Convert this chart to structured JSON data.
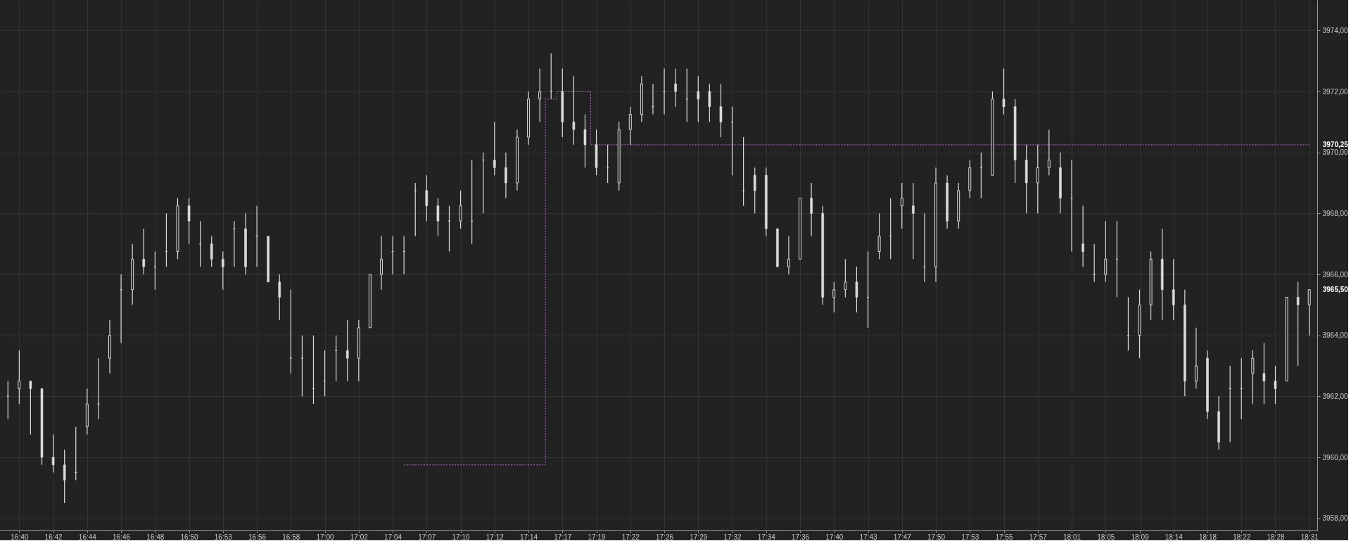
{
  "chart_data": {
    "type": "candlestick",
    "categories": [
      null,
      "16:40",
      null,
      null,
      "16:42",
      null,
      null,
      "16:44",
      null,
      null,
      "16:46",
      null,
      null,
      "16:48",
      null,
      null,
      "16:50",
      null,
      null,
      "16:53",
      null,
      null,
      "16:56",
      null,
      null,
      "16:58",
      null,
      null,
      "17:00",
      null,
      null,
      "17:02",
      null,
      null,
      "17:04",
      null,
      null,
      "17:07",
      null,
      null,
      "17:10",
      null,
      null,
      "17:12",
      null,
      null,
      "17:14",
      null,
      null,
      "17:17",
      null,
      null,
      "17:19",
      null,
      null,
      "17:22",
      null,
      null,
      "17:26",
      null,
      null,
      "17:29",
      null,
      null,
      "17:32",
      null,
      null,
      "17:34",
      null,
      null,
      "17:36",
      null,
      null,
      "17:40",
      null,
      null,
      "17:43",
      null,
      null,
      "17:47",
      null,
      null,
      "17:50",
      null,
      null,
      "17:53",
      null,
      null,
      "17:55",
      null,
      null,
      "17:57",
      null,
      null,
      "18:01",
      null,
      null,
      "18:05",
      null,
      null,
      "18:09",
      null,
      null,
      "18:14",
      null,
      null,
      "18:18",
      null,
      null,
      "18:22",
      null,
      null,
      "18:28",
      null,
      null,
      "18:31"
    ],
    "ohlc": [
      [
        3962,
        3962.5,
        3961.25,
        3962
      ],
      [
        3962.25,
        3963.5,
        3961.75,
        3962.5
      ],
      [
        3962.5,
        3962.5,
        3960.75,
        3962.25
      ],
      [
        3962.25,
        3962.25,
        3959.75,
        3960
      ],
      [
        3960,
        3960.75,
        3959.5,
        3959.75
      ],
      [
        3959.75,
        3960.25,
        3958.5,
        3959.25
      ],
      [
        3959.5,
        3961,
        3959.25,
        3959.5
      ],
      [
        3961,
        3962.25,
        3960.75,
        3961.75
      ],
      [
        3961.75,
        3963.25,
        3961.25,
        3961.75
      ],
      [
        3963.25,
        3964.5,
        3962.75,
        3964
      ],
      [
        3965.5,
        3966,
        3963.75,
        3965.5
      ],
      [
        3965.5,
        3967,
        3965,
        3966.5
      ],
      [
        3966.5,
        3967.5,
        3966,
        3966.25
      ],
      [
        3966.25,
        3966.75,
        3965.5,
        3966.25
      ],
      [
        3966.75,
        3968,
        3966.25,
        3966.75
      ],
      [
        3966.75,
        3968.5,
        3966.5,
        3968.25
      ],
      [
        3968.25,
        3968.5,
        3967,
        3967.75
      ],
      [
        3967,
        3967.75,
        3966.25,
        3967
      ],
      [
        3967,
        3967.25,
        3966.25,
        3966.5
      ],
      [
        3966.5,
        3966.75,
        3965.5,
        3966.25
      ],
      [
        3967.5,
        3967.75,
        3966.25,
        3967.5
      ],
      [
        3967.5,
        3968,
        3966,
        3966.25
      ],
      [
        3967.25,
        3968.25,
        3966.25,
        3967.25
      ],
      [
        3967.25,
        3967.25,
        3965.75,
        3965.75
      ],
      [
        3965.75,
        3966,
        3964.5,
        3965.25
      ],
      [
        3963.25,
        3965.5,
        3962.75,
        3963.25
      ],
      [
        3963.25,
        3964,
        3962,
        3963.25
      ],
      [
        3962.25,
        3964,
        3961.75,
        3962.25
      ],
      [
        3962.5,
        3963.5,
        3962,
        3962.5
      ],
      [
        3963.5,
        3964,
        3962.5,
        3963.5
      ],
      [
        3963.5,
        3964.5,
        3962.5,
        3963.25
      ],
      [
        3963.25,
        3964.5,
        3962.5,
        3964.25
      ],
      [
        3964.25,
        3966,
        3964.25,
        3966
      ],
      [
        3966,
        3967.25,
        3965.5,
        3966.5
      ],
      [
        3966.75,
        3967.25,
        3966,
        3966.75
      ],
      [
        3966.75,
        3967.25,
        3966,
        3966.75
      ],
      [
        3968.75,
        3969,
        3967.25,
        3968.75
      ],
      [
        3968.75,
        3969.25,
        3967.75,
        3968.25
      ],
      [
        3968.25,
        3968.5,
        3967.25,
        3967.75
      ],
      [
        3967.75,
        3968.25,
        3966.75,
        3967.75
      ],
      [
        3967.75,
        3968.75,
        3967.5,
        3968.25
      ],
      [
        3967.75,
        3969.75,
        3967,
        3967.75
      ],
      [
        3969.75,
        3970,
        3968,
        3969.75
      ],
      [
        3969.75,
        3971,
        3969.25,
        3969.5
      ],
      [
        3969.5,
        3970,
        3968.5,
        3969
      ],
      [
        3969,
        3970.75,
        3968.75,
        3970.5
      ],
      [
        3970.5,
        3972,
        3970.25,
        3971.75
      ],
      [
        3971.75,
        3972.75,
        3971,
        3972
      ],
      [
        3972,
        3973.25,
        3971.75,
        3972
      ],
      [
        3972,
        3972.75,
        3970.5,
        3971
      ],
      [
        3971,
        3972.5,
        3970.25,
        3970.75
      ],
      [
        3970.75,
        3971.25,
        3969.5,
        3970.25
      ],
      [
        3970.25,
        3970.75,
        3969.25,
        3969.5
      ],
      [
        3969.5,
        3970.25,
        3969,
        3969.5
      ],
      [
        3969,
        3971,
        3968.75,
        3970.75
      ],
      [
        3970.75,
        3971.5,
        3970.25,
        3971.25
      ],
      [
        3971.25,
        3972.5,
        3971,
        3972.25
      ],
      [
        3971.5,
        3972.25,
        3971.25,
        3971.5
      ],
      [
        3972,
        3972.75,
        3971.25,
        3972
      ],
      [
        3972.25,
        3972.75,
        3971.5,
        3972
      ],
      [
        3971.75,
        3972.75,
        3971,
        3971.75
      ],
      [
        3972,
        3972.5,
        3971,
        3971.75
      ],
      [
        3972,
        3972.25,
        3971,
        3971.5
      ],
      [
        3971.5,
        3972.25,
        3970.5,
        3971
      ],
      [
        3971,
        3971.5,
        3969.25,
        3971
      ],
      [
        3968.75,
        3970.5,
        3968.25,
        3968.75
      ],
      [
        3969.25,
        3969.5,
        3968,
        3968.75
      ],
      [
        3969.25,
        3969.5,
        3967.25,
        3967.5
      ],
      [
        3967.5,
        3967.5,
        3966.25,
        3966.25
      ],
      [
        3966.25,
        3967.25,
        3966,
        3966.5
      ],
      [
        3966.5,
        3968.5,
        3966.5,
        3968.5
      ],
      [
        3968.5,
        3969,
        3967.25,
        3968
      ],
      [
        3968,
        3968.25,
        3965,
        3965.25
      ],
      [
        3965.25,
        3965.75,
        3964.75,
        3965.5
      ],
      [
        3965.5,
        3966.5,
        3965.25,
        3965.75
      ],
      [
        3965.75,
        3966.25,
        3964.75,
        3965.25
      ],
      [
        3965.25,
        3966.75,
        3964.25,
        3965.25
      ],
      [
        3966.75,
        3968,
        3966.5,
        3967.25
      ],
      [
        3967.25,
        3968.5,
        3966.5,
        3967.25
      ],
      [
        3968.25,
        3969,
        3967.5,
        3968.5
      ],
      [
        3968.25,
        3969,
        3966.5,
        3968
      ],
      [
        3966.25,
        3968,
        3965.75,
        3966.25
      ],
      [
        3966.25,
        3969.5,
        3965.75,
        3969
      ],
      [
        3969,
        3969.25,
        3967.5,
        3967.75
      ],
      [
        3967.75,
        3969,
        3967.5,
        3968.75
      ],
      [
        3968.75,
        3969.75,
        3968.5,
        3969.5
      ],
      [
        3969.5,
        3970,
        3968.5,
        3969.5
      ],
      [
        3969.25,
        3972,
        3969.25,
        3971.75
      ],
      [
        3971.75,
        3972.75,
        3971.25,
        3971.5
      ],
      [
        3971.5,
        3971.75,
        3969,
        3969.75
      ],
      [
        3969.75,
        3970.25,
        3968,
        3969
      ],
      [
        3969,
        3970.25,
        3968,
        3969.5
      ],
      [
        3969.5,
        3970.75,
        3969.25,
        3969.75
      ],
      [
        3969.5,
        3970,
        3968,
        3968.5
      ],
      [
        3968.5,
        3969.75,
        3966.75,
        3968.5
      ],
      [
        3967,
        3968.25,
        3966.25,
        3966.75
      ],
      [
        3966,
        3967,
        3965.75,
        3966
      ],
      [
        3966,
        3967.75,
        3965.75,
        3966.5
      ],
      [
        3966.5,
        3967.75,
        3965.25,
        3966.5
      ],
      [
        3964,
        3965.25,
        3963.5,
        3964
      ],
      [
        3964,
        3965.5,
        3963.25,
        3965
      ],
      [
        3965,
        3966.75,
        3964.5,
        3966.5
      ],
      [
        3966.5,
        3967.5,
        3964.5,
        3965.5
      ],
      [
        3965.5,
        3966.5,
        3964.5,
        3965
      ],
      [
        3965,
        3965.5,
        3962,
        3962.5
      ],
      [
        3962.5,
        3964.25,
        3962.25,
        3963
      ],
      [
        3963.25,
        3963.5,
        3961.25,
        3961.5
      ],
      [
        3961.5,
        3962,
        3960.25,
        3960.5
      ],
      [
        3962.25,
        3963,
        3960.5,
        3962.25
      ],
      [
        3962.25,
        3963.25,
        3961.25,
        3962.25
      ],
      [
        3962.75,
        3963.5,
        3961.75,
        3963.25
      ],
      [
        3962.75,
        3963.75,
        3961.75,
        3962.5
      ],
      [
        3962.5,
        3963,
        3961.75,
        3962.25
      ],
      [
        3962.5,
        3965.25,
        3962.5,
        3965.25
      ],
      [
        3965.25,
        3965.75,
        3963,
        3965
      ],
      [
        3965,
        3965.5,
        3964,
        3965.5
      ]
    ],
    "color": "#dcdcdc",
    "series": [
      {
        "type": "step",
        "color": "#b46ec4",
        "line_style": "dotted",
        "values": [
          null,
          null,
          null,
          null,
          null,
          null,
          null,
          null,
          null,
          null,
          null,
          null,
          null,
          null,
          null,
          null,
          null,
          null,
          null,
          null,
          null,
          null,
          null,
          null,
          null,
          null,
          null,
          null,
          null,
          null,
          null,
          null,
          null,
          null,
          null,
          3959.75,
          3959.75,
          3959.75,
          3959.75,
          3959.75,
          3959.75,
          3959.75,
          3959.75,
          3959.75,
          3959.75,
          3959.75,
          3959.75,
          3959.75,
          3971.75,
          3972,
          3972,
          3972,
          3970.25,
          3970.25,
          3970.25,
          3970.25,
          3970.25,
          3970.25,
          3970.25,
          3970.25,
          3970.25,
          3970.25,
          3970.25,
          3970.25,
          3970.25,
          3970.25,
          3970.25,
          3970.25,
          3970.25,
          3970.25,
          3970.25,
          3970.25,
          3970.25,
          3970.25,
          3970.25,
          3970.25,
          3970.25,
          3970.25,
          3970.25,
          3970.25,
          3970.25,
          3970.25,
          3970.25,
          3970.25,
          3970.25,
          3970.25,
          3970.25,
          3970.25,
          3970.25,
          3970.25,
          3970.25,
          3970.25,
          3970.25,
          3970.25,
          3970.25,
          3970.25,
          3970.25,
          3970.25,
          3970.25,
          3970.25,
          3970.25,
          3970.25,
          3970.25,
          3970.25,
          3970.25,
          3970.25,
          3970.25,
          3970.25,
          3970.25,
          3970.25,
          3970.25,
          3970.25,
          3970.25,
          3970.25,
          3970.25,
          3970.25
        ]
      }
    ],
    "ylim": [
      3957.6,
      3975
    ],
    "yticks": [
      {
        "value": 3958,
        "label": "3958,00"
      },
      {
        "value": 3960,
        "label": "3960,00"
      },
      {
        "value": 3962,
        "label": "3962,00"
      },
      {
        "value": 3964,
        "label": "3964,00"
      },
      {
        "value": 3966,
        "label": "3966,00"
      },
      {
        "value": 3968,
        "label": "3968,00"
      },
      {
        "value": 3970,
        "label": "3970,00"
      },
      {
        "value": 3972,
        "label": "3972,00"
      },
      {
        "value": 3974,
        "label": "3974,00"
      }
    ],
    "grid": true,
    "annotations": [
      {
        "text": "3970,25",
        "x": "18:31",
        "y": 3970.25
      },
      {
        "text": "3965,50",
        "x": "18:31",
        "y": 3965.5
      }
    ]
  }
}
